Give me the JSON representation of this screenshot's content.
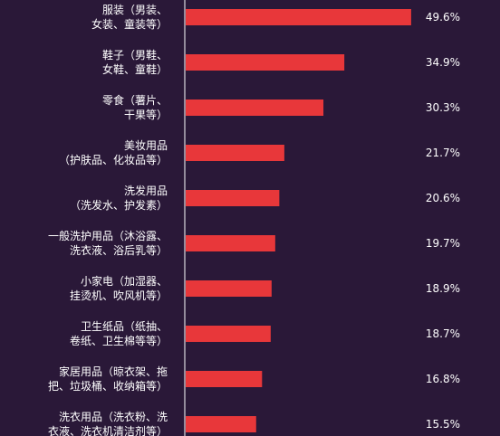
{
  "chart_data": {
    "type": "bar",
    "orientation": "horizontal",
    "categories": [
      [
        "服装（男装、",
        "女装、童装等）"
      ],
      [
        "鞋子（男鞋、",
        "女鞋、童鞋）"
      ],
      [
        "零食（薯片、",
        "干果等）"
      ],
      [
        "美妆用品",
        "（护肤品、化妆品等）"
      ],
      [
        "洗发用品",
        "（洗发水、护发素）"
      ],
      [
        "一般洗护用品（沐浴露、",
        "洗衣液、浴后乳等）"
      ],
      [
        "小家电（加湿器、",
        "挂烫机、吹风机等）"
      ],
      [
        "卫生纸品（纸抽、",
        "卷纸、卫生棉等等）"
      ],
      [
        "家居用品（晾衣架、拖",
        "把、垃圾桶、收纳箱等）"
      ],
      [
        "洗衣用品（洗衣粉、洗",
        "衣液、洗衣机清洁剂等）"
      ]
    ],
    "values": [
      49.6,
      34.9,
      30.3,
      21.7,
      20.6,
      19.7,
      18.9,
      18.7,
      16.8,
      15.5
    ],
    "value_labels": [
      "49.6%",
      "34.9%",
      "30.3%",
      "21.7%",
      "20.6%",
      "19.7%",
      "18.9%",
      "18.7%",
      "16.8%",
      "15.5%"
    ],
    "xlim": [
      0,
      55
    ],
    "grid": false,
    "legend": "none",
    "bar_color": "#e8373a",
    "axis_color": "#ffffff",
    "text_color": "#ffffff",
    "background": "#2a1838"
  }
}
